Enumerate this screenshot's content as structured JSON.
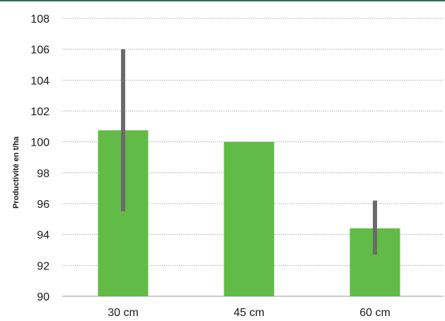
{
  "chart_data": {
    "type": "bar",
    "title": "",
    "xlabel": "",
    "ylabel": "Productivité en t/ha",
    "categories": [
      "30 cm",
      "45 cm",
      "60 cm"
    ],
    "values": [
      100.75,
      100.0,
      94.4
    ],
    "error_bars": [
      {
        "low": 95.5,
        "high": 106.0
      },
      null,
      {
        "low": 92.7,
        "high": 96.2
      }
    ],
    "ylim": [
      90,
      108
    ],
    "yticks": [
      90,
      92,
      94,
      96,
      98,
      100,
      102,
      104,
      106,
      108
    ],
    "grid": true,
    "grid_style": "dotted",
    "bar_color": "#62bb46",
    "error_bar_color": "#6b6b6b",
    "grid_color": "#9a9a9a",
    "accent_color": "#2f6f4f"
  }
}
